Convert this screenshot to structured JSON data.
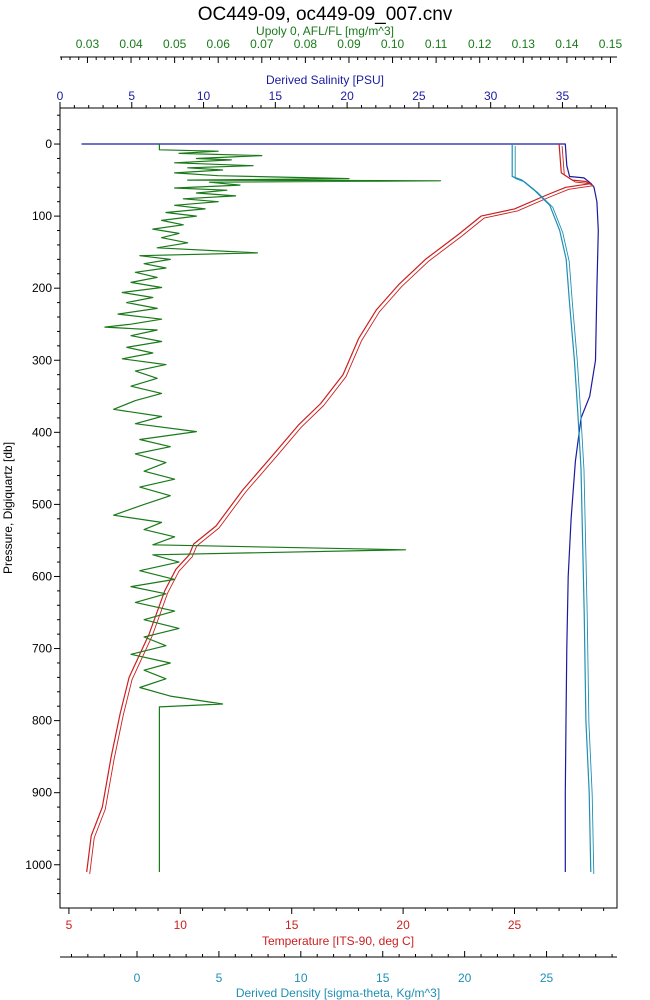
{
  "chart_data": {
    "type": "line",
    "title": "OC449-09, oc449-09_007.cnv",
    "y_axis": {
      "label": "Pressure, Digiquartz [db]",
      "range": [
        -50,
        1060
      ],
      "ticks": [
        0,
        100,
        200,
        300,
        400,
        500,
        600,
        700,
        800,
        900,
        1000
      ]
    },
    "axes": {
      "fluor": {
        "label": "Upoly 0, AFL/FL [mg/m^3]",
        "color": "#1a7a1a",
        "position": "top-outer",
        "range": [
          0.0237,
          0.1515
        ],
        "ticks": [
          "0.03",
          "0.04",
          "0.05",
          "0.06",
          "0.07",
          "0.08",
          "0.09",
          "0.10",
          "0.11",
          "0.12",
          "0.13",
          "0.14",
          "0.15"
        ]
      },
      "salinity": {
        "label": "Derived Salinity [PSU]",
        "color": "#1a1aa0",
        "position": "top-inner",
        "range": [
          0,
          38.8
        ],
        "ticks": [
          "0",
          "5",
          "10",
          "15",
          "20",
          "25",
          "30",
          "35"
        ]
      },
      "temperature": {
        "label": "Temperature [ITS-90, deg C]",
        "color": "#cc1f1f",
        "position": "bottom-inner",
        "range": [
          4.6,
          29.6
        ],
        "ticks": [
          "5",
          "10",
          "15",
          "20",
          "25"
        ]
      },
      "density": {
        "label": "Derived Density [sigma-theta, Kg/m^3]",
        "color": "#1f8fb3",
        "position": "bottom-outer",
        "range": [
          -4.7,
          29.3
        ],
        "ticks": [
          "0",
          "5",
          "10",
          "15",
          "20",
          "25"
        ]
      }
    },
    "series": [
      {
        "axis": "salinity",
        "points": [
          [
            1.5,
            0
          ],
          [
            35.2,
            0
          ],
          [
            35.3,
            30
          ],
          [
            35.5,
            45
          ],
          [
            36.5,
            47
          ],
          [
            37.0,
            55
          ],
          [
            37.2,
            60
          ],
          [
            37.4,
            80
          ],
          [
            37.5,
            120
          ],
          [
            37.4,
            200
          ],
          [
            37.3,
            300
          ],
          [
            36.9,
            350
          ],
          [
            36.3,
            380
          ],
          [
            35.9,
            440
          ],
          [
            35.6,
            520
          ],
          [
            35.4,
            600
          ],
          [
            35.3,
            700
          ],
          [
            35.25,
            800
          ],
          [
            35.2,
            900
          ],
          [
            35.2,
            1010
          ]
        ]
      },
      {
        "axis": "temperature",
        "points": [
          [
            27.0,
            0
          ],
          [
            27.1,
            40
          ],
          [
            27.6,
            50
          ],
          [
            28.2,
            52
          ],
          [
            28.4,
            55
          ],
          [
            27.3,
            60
          ],
          [
            26.5,
            70
          ],
          [
            25.0,
            90
          ],
          [
            23.5,
            100
          ],
          [
            22.5,
            125
          ],
          [
            21.0,
            160
          ],
          [
            19.8,
            195
          ],
          [
            18.8,
            230
          ],
          [
            18.0,
            270
          ],
          [
            17.3,
            320
          ],
          [
            16.3,
            360
          ],
          [
            15.3,
            390
          ],
          [
            14.2,
            430
          ],
          [
            12.8,
            480
          ],
          [
            11.6,
            530
          ],
          [
            10.6,
            555
          ],
          [
            10.4,
            570
          ],
          [
            9.8,
            590
          ],
          [
            9.3,
            620
          ],
          [
            8.6,
            680
          ],
          [
            7.7,
            740
          ],
          [
            7.3,
            790
          ],
          [
            6.9,
            850
          ],
          [
            6.5,
            920
          ],
          [
            6.0,
            960
          ],
          [
            5.8,
            1010
          ]
        ]
      },
      {
        "axis": "density",
        "points": [
          [
            22.9,
            0
          ],
          [
            22.9,
            45
          ],
          [
            23.5,
            50
          ],
          [
            24.3,
            65
          ],
          [
            25.2,
            85
          ],
          [
            25.8,
            120
          ],
          [
            26.2,
            160
          ],
          [
            26.4,
            220
          ],
          [
            26.7,
            300
          ],
          [
            26.9,
            370
          ],
          [
            27.1,
            450
          ],
          [
            27.2,
            550
          ],
          [
            27.3,
            650
          ],
          [
            27.4,
            800
          ],
          [
            27.6,
            900
          ],
          [
            27.7,
            1010
          ]
        ]
      },
      {
        "axis": "fluor",
        "points": [
          [
            0.0465,
            0
          ],
          [
            0.0465,
            8
          ],
          [
            0.06,
            10
          ],
          [
            0.051,
            13
          ],
          [
            0.07,
            16
          ],
          [
            0.055,
            20
          ],
          [
            0.063,
            22
          ],
          [
            0.05,
            26
          ],
          [
            0.068,
            30
          ],
          [
            0.053,
            33
          ],
          [
            0.061,
            36
          ],
          [
            0.05,
            40
          ],
          [
            0.06,
            44
          ],
          [
            0.09,
            48
          ],
          [
            0.053,
            50
          ],
          [
            0.111,
            51
          ],
          [
            0.058,
            53
          ],
          [
            0.065,
            57
          ],
          [
            0.05,
            61
          ],
          [
            0.062,
            64
          ],
          [
            0.055,
            68
          ],
          [
            0.064,
            72
          ],
          [
            0.052,
            76
          ],
          [
            0.06,
            80
          ],
          [
            0.05,
            85
          ],
          [
            0.057,
            90
          ],
          [
            0.048,
            95
          ],
          [
            0.055,
            100
          ],
          [
            0.047,
            106
          ],
          [
            0.052,
            112
          ],
          [
            0.045,
            118
          ],
          [
            0.051,
            124
          ],
          [
            0.047,
            130
          ],
          [
            0.053,
            137
          ],
          [
            0.046,
            144
          ],
          [
            0.069,
            151
          ],
          [
            0.042,
            155
          ],
          [
            0.049,
            160
          ],
          [
            0.043,
            166
          ],
          [
            0.048,
            172
          ],
          [
            0.041,
            178
          ],
          [
            0.046,
            185
          ],
          [
            0.04,
            192
          ],
          [
            0.047,
            199
          ],
          [
            0.038,
            206
          ],
          [
            0.045,
            213
          ],
          [
            0.039,
            220
          ],
          [
            0.046,
            228
          ],
          [
            0.037,
            236
          ],
          [
            0.047,
            243
          ],
          [
            0.04,
            250
          ],
          [
            0.034,
            254
          ],
          [
            0.046,
            258
          ],
          [
            0.04,
            266
          ],
          [
            0.047,
            274
          ],
          [
            0.039,
            282
          ],
          [
            0.045,
            290
          ],
          [
            0.038,
            298
          ],
          [
            0.048,
            306
          ],
          [
            0.041,
            315
          ],
          [
            0.046,
            325
          ],
          [
            0.04,
            336
          ],
          [
            0.047,
            346
          ],
          [
            0.041,
            356
          ],
          [
            0.036,
            368
          ],
          [
            0.047,
            378
          ],
          [
            0.041,
            388
          ],
          [
            0.055,
            399
          ],
          [
            0.042,
            410
          ],
          [
            0.049,
            420
          ],
          [
            0.041,
            430
          ],
          [
            0.048,
            442
          ],
          [
            0.043,
            454
          ],
          [
            0.05,
            465
          ],
          [
            0.042,
            476
          ],
          [
            0.049,
            488
          ],
          [
            0.043,
            500
          ],
          [
            0.036,
            515
          ],
          [
            0.047,
            525
          ],
          [
            0.043,
            535
          ],
          [
            0.05,
            545
          ],
          [
            0.045,
            556
          ],
          [
            0.103,
            563
          ],
          [
            0.045,
            570
          ],
          [
            0.051,
            580
          ],
          [
            0.042,
            592
          ],
          [
            0.05,
            604
          ],
          [
            0.04,
            614
          ],
          [
            0.048,
            624
          ],
          [
            0.041,
            636
          ],
          [
            0.05,
            648
          ],
          [
            0.043,
            660
          ],
          [
            0.051,
            672
          ],
          [
            0.043,
            684
          ],
          [
            0.048,
            696
          ],
          [
            0.04,
            708
          ],
          [
            0.049,
            720
          ],
          [
            0.043,
            730
          ],
          [
            0.048,
            742
          ],
          [
            0.042,
            754
          ],
          [
            0.049,
            766
          ],
          [
            0.061,
            777
          ],
          [
            0.0465,
            781
          ],
          [
            0.0465,
            1010
          ]
        ]
      }
    ],
    "grid": false,
    "legend": "none"
  }
}
